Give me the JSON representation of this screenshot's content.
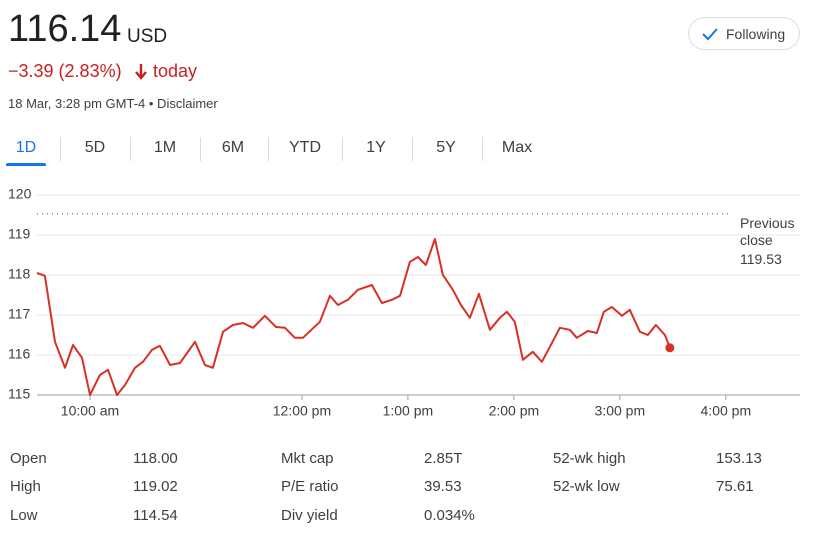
{
  "header": {
    "price": "116.14",
    "currency": "USD",
    "change": "−3.39 (2.83%)",
    "change_period": "today",
    "timestamp": "18 Mar, 3:28 pm GMT-4 • Disclaimer",
    "follow_button": "Following"
  },
  "tabs": [
    "1D",
    "5D",
    "1M",
    "6M",
    "YTD",
    "1Y",
    "5Y",
    "Max"
  ],
  "active_tab": 0,
  "chart_data": {
    "type": "line",
    "color": "#d93025",
    "grid": true,
    "x": [
      9.5,
      9.575,
      9.67,
      9.764,
      9.84,
      9.925,
      10,
      10.094,
      10.17,
      10.255,
      10.33,
      10.425,
      10.5,
      10.585,
      10.66,
      10.755,
      10.849,
      10.991,
      11.085,
      11.16,
      11.255,
      11.349,
      11.443,
      11.538,
      11.651,
      11.755,
      11.84,
      11.934,
      12.009,
      12.17,
      12.264,
      12.34,
      12.434,
      12.528,
      12.66,
      12.755,
      12.849,
      12.925,
      13.019,
      13.094,
      13.17,
      13.255,
      13.33,
      13.425,
      13.5,
      13.585,
      13.67,
      13.774,
      13.868,
      13.934,
      14.009,
      14.085,
      14.179,
      14.264,
      14.434,
      14.528,
      14.594,
      14.698,
      14.783,
      14.849,
      14.925,
      15.019,
      15.094,
      15.189,
      15.264,
      15.34,
      15.425,
      15.472
    ],
    "values": [
      118.05,
      117.98,
      116.33,
      115.68,
      116.25,
      115.93,
      115.0,
      115.5,
      115.63,
      115.0,
      115.25,
      115.68,
      115.83,
      116.13,
      116.23,
      115.75,
      115.8,
      116.33,
      115.75,
      115.68,
      116.58,
      116.75,
      116.8,
      116.68,
      116.98,
      116.7,
      116.68,
      116.43,
      116.43,
      116.83,
      117.48,
      117.25,
      117.38,
      117.63,
      117.75,
      117.3,
      117.38,
      117.48,
      118.33,
      118.45,
      118.25,
      118.9,
      118.0,
      117.63,
      117.25,
      116.93,
      117.53,
      116.63,
      116.93,
      117.08,
      116.83,
      115.88,
      116.08,
      115.83,
      116.68,
      116.63,
      116.43,
      116.6,
      116.55,
      117.08,
      117.2,
      116.98,
      117.13,
      116.58,
      116.5,
      116.75,
      116.5,
      116.18
    ],
    "xlim": [
      9.5,
      16.7
    ],
    "xticks": [
      {
        "value": 10,
        "label": "10:00 am"
      },
      {
        "value": 12,
        "label": "12:00 pm"
      },
      {
        "value": 13,
        "label": "1:00 pm"
      },
      {
        "value": 14,
        "label": "2:00 pm"
      },
      {
        "value": 15,
        "label": "3:00 pm"
      },
      {
        "value": 16,
        "label": "4:00 pm"
      }
    ],
    "ylim": [
      115,
      120
    ],
    "yticks": [
      115,
      116,
      117,
      118,
      119,
      120
    ],
    "previous_close": {
      "label": "Previous close",
      "value": 119.53
    }
  },
  "stats": [
    [
      [
        "Open",
        "118.00"
      ],
      [
        "Mkt cap",
        "2.85T"
      ],
      [
        "52-wk high",
        "153.13"
      ]
    ],
    [
      [
        "High",
        "119.02"
      ],
      [
        "P/E ratio",
        "39.53"
      ],
      [
        "52-wk low",
        "75.61"
      ]
    ],
    [
      [
        "Low",
        "114.54"
      ],
      [
        "Div yield",
        "0.034%"
      ]
    ]
  ]
}
